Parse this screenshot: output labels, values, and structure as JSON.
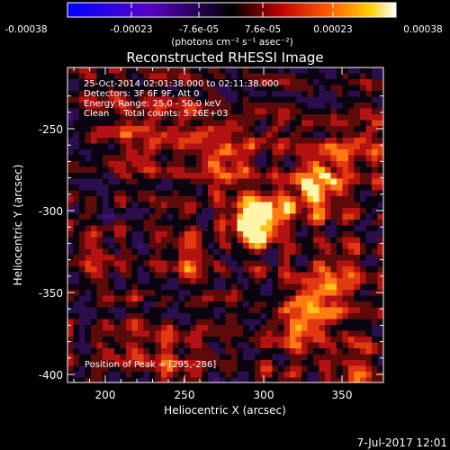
{
  "colorbar": {
    "ticks": [
      "-0.00038",
      "-0.00023",
      "-7.6e-05",
      "7.6e-05",
      "0.00023",
      "0.00038"
    ],
    "unit_label": "(photons cm⁻² s⁻¹ asec⁻²)",
    "min": -0.00038,
    "max": 0.00038
  },
  "plot": {
    "title": "Reconstructed RHESSI Image",
    "xlabel": "Heliocentric X (arcsec)",
    "ylabel": "Heliocentric Y (arcsec)",
    "x_ticks": [
      "200",
      "250",
      "300",
      "350"
    ],
    "y_ticks": [
      "-250",
      "-300",
      "-350",
      "-400"
    ],
    "xlim": [
      178,
      370
    ],
    "ylim": [
      -405,
      -210
    ],
    "annotations": [
      "25-Oct-2014 02:01:38.000 to 02:11:38.000",
      "Detectors: 3F 6F 9F, Att 0",
      "Energy Range: 25.0 - 50.0 keV",
      "Clean     Total counts: 5.26E+03"
    ],
    "peak_label": "Position of Peak = [295,-286]"
  },
  "footer": {
    "date": "7-Jul-2017 12:01"
  }
}
